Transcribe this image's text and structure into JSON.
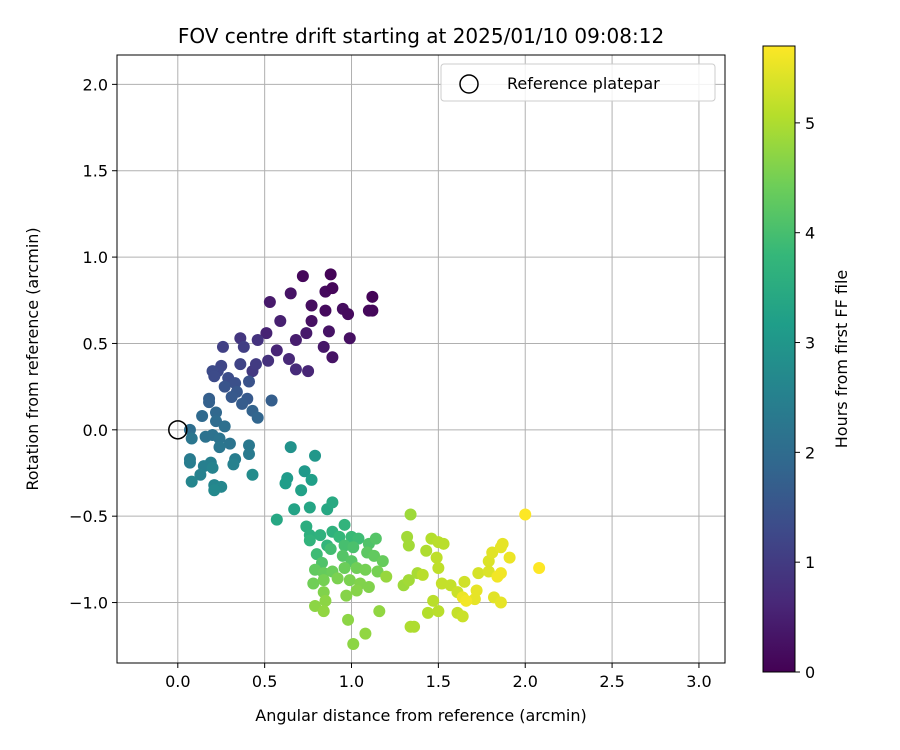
{
  "chart_data": {
    "type": "scatter",
    "title": "FOV centre drift starting at 2025/01/10 09:08:12",
    "xlabel": "Angular distance from reference (arcmin)",
    "ylabel": "Rotation from reference (arcmin)",
    "xlim": [
      -0.35,
      3.15
    ],
    "ylim": [
      -1.35,
      2.17
    ],
    "xticks": [
      "0.0",
      "0.5",
      "1.0",
      "1.5",
      "2.0",
      "2.5",
      "3.0"
    ],
    "yticks": [
      "−1.0",
      "−0.5",
      "0.0",
      "0.5",
      "1.0",
      "1.5",
      "2.0"
    ],
    "grid": true,
    "legend": {
      "position": "top-right",
      "entries": [
        "Reference platepar"
      ]
    },
    "reference_point": {
      "x": 0.0,
      "y": 0.0
    },
    "colorbar": {
      "label": "Hours from first FF file",
      "range": [
        0,
        5.7
      ],
      "ticks": [
        "0",
        "1",
        "2",
        "3",
        "4",
        "5"
      ],
      "colormap": "viridis"
    },
    "colormap_stops": [
      "#440154",
      "#482878",
      "#3e4989",
      "#31688e",
      "#26828e",
      "#1f9e89",
      "#35b779",
      "#6ece58",
      "#b5de2b",
      "#fde725"
    ],
    "points": [
      {
        "x": 0.88,
        "y": 0.9,
        "h": 0.05
      },
      {
        "x": 0.72,
        "y": 0.89,
        "h": 0.1
      },
      {
        "x": 0.85,
        "y": 0.8,
        "h": 0.15
      },
      {
        "x": 0.89,
        "y": 0.82,
        "h": 0.1
      },
      {
        "x": 1.12,
        "y": 0.77,
        "h": 0.05
      },
      {
        "x": 1.12,
        "y": 0.69,
        "h": 0.1
      },
      {
        "x": 1.1,
        "y": 0.69,
        "h": 0.12
      },
      {
        "x": 0.77,
        "y": 0.72,
        "h": 0.2
      },
      {
        "x": 0.85,
        "y": 0.69,
        "h": 0.15
      },
      {
        "x": 0.95,
        "y": 0.7,
        "h": 0.2
      },
      {
        "x": 0.98,
        "y": 0.67,
        "h": 0.15
      },
      {
        "x": 0.77,
        "y": 0.63,
        "h": 0.25
      },
      {
        "x": 0.65,
        "y": 0.79,
        "h": 0.3
      },
      {
        "x": 0.53,
        "y": 0.74,
        "h": 0.4
      },
      {
        "x": 0.87,
        "y": 0.57,
        "h": 0.3
      },
      {
        "x": 0.84,
        "y": 0.48,
        "h": 0.35
      },
      {
        "x": 0.99,
        "y": 0.53,
        "h": 0.25
      },
      {
        "x": 0.89,
        "y": 0.42,
        "h": 0.3
      },
      {
        "x": 0.74,
        "y": 0.56,
        "h": 0.4
      },
      {
        "x": 0.68,
        "y": 0.52,
        "h": 0.45
      },
      {
        "x": 0.59,
        "y": 0.63,
        "h": 0.5
      },
      {
        "x": 0.51,
        "y": 0.56,
        "h": 0.55
      },
      {
        "x": 0.57,
        "y": 0.46,
        "h": 0.6
      },
      {
        "x": 0.64,
        "y": 0.41,
        "h": 0.65
      },
      {
        "x": 0.68,
        "y": 0.35,
        "h": 0.7
      },
      {
        "x": 0.75,
        "y": 0.34,
        "h": 0.6
      },
      {
        "x": 0.52,
        "y": 0.4,
        "h": 0.8
      },
      {
        "x": 0.46,
        "y": 0.52,
        "h": 0.85
      },
      {
        "x": 0.36,
        "y": 0.53,
        "h": 0.9
      },
      {
        "x": 0.43,
        "y": 0.34,
        "h": 0.95
      },
      {
        "x": 0.45,
        "y": 0.38,
        "h": 1.0
      },
      {
        "x": 0.38,
        "y": 0.48,
        "h": 1.05
      },
      {
        "x": 0.26,
        "y": 0.48,
        "h": 1.1
      },
      {
        "x": 0.36,
        "y": 0.38,
        "h": 1.15
      },
      {
        "x": 0.25,
        "y": 0.37,
        "h": 1.2
      },
      {
        "x": 0.23,
        "y": 0.34,
        "h": 1.25
      },
      {
        "x": 0.2,
        "y": 0.34,
        "h": 1.3
      },
      {
        "x": 0.21,
        "y": 0.31,
        "h": 1.3
      },
      {
        "x": 0.29,
        "y": 0.3,
        "h": 1.35
      },
      {
        "x": 0.33,
        "y": 0.27,
        "h": 1.4
      },
      {
        "x": 0.41,
        "y": 0.28,
        "h": 1.45
      },
      {
        "x": 0.27,
        "y": 0.25,
        "h": 1.5
      },
      {
        "x": 0.34,
        "y": 0.22,
        "h": 1.55
      },
      {
        "x": 0.31,
        "y": 0.19,
        "h": 1.6
      },
      {
        "x": 0.4,
        "y": 0.18,
        "h": 1.6
      },
      {
        "x": 0.37,
        "y": 0.15,
        "h": 1.65
      },
      {
        "x": 0.54,
        "y": 0.17,
        "h": 1.7
      },
      {
        "x": 0.18,
        "y": 0.18,
        "h": 1.7
      },
      {
        "x": 0.18,
        "y": 0.16,
        "h": 1.75
      },
      {
        "x": 0.43,
        "y": 0.11,
        "h": 1.8
      },
      {
        "x": 0.46,
        "y": 0.07,
        "h": 1.85
      },
      {
        "x": 0.22,
        "y": 0.1,
        "h": 1.9
      },
      {
        "x": 0.14,
        "y": 0.08,
        "h": 1.95
      },
      {
        "x": 0.22,
        "y": 0.05,
        "h": 2.0
      },
      {
        "x": 0.07,
        "y": 0.0,
        "h": 2.05
      },
      {
        "x": 0.27,
        "y": 0.02,
        "h": 2.1
      },
      {
        "x": 0.16,
        "y": -0.04,
        "h": 2.15
      },
      {
        "x": 0.2,
        "y": -0.03,
        "h": 2.15
      },
      {
        "x": 0.24,
        "y": -0.05,
        "h": 2.2
      },
      {
        "x": 0.3,
        "y": -0.08,
        "h": 2.2
      },
      {
        "x": 0.08,
        "y": -0.05,
        "h": 2.25
      },
      {
        "x": 0.24,
        "y": -0.1,
        "h": 2.25
      },
      {
        "x": 0.41,
        "y": -0.09,
        "h": 2.3
      },
      {
        "x": 0.41,
        "y": -0.14,
        "h": 2.35
      },
      {
        "x": 0.07,
        "y": -0.17,
        "h": 2.35
      },
      {
        "x": 0.07,
        "y": -0.19,
        "h": 2.4
      },
      {
        "x": 0.33,
        "y": -0.17,
        "h": 2.4
      },
      {
        "x": 0.19,
        "y": -0.19,
        "h": 2.45
      },
      {
        "x": 0.15,
        "y": -0.21,
        "h": 2.45
      },
      {
        "x": 0.32,
        "y": -0.2,
        "h": 2.5
      },
      {
        "x": 0.13,
        "y": -0.26,
        "h": 2.5
      },
      {
        "x": 0.2,
        "y": -0.22,
        "h": 2.55
      },
      {
        "x": 0.08,
        "y": -0.3,
        "h": 2.6
      },
      {
        "x": 0.21,
        "y": -0.32,
        "h": 2.6
      },
      {
        "x": 0.25,
        "y": -0.33,
        "h": 2.65
      },
      {
        "x": 0.21,
        "y": -0.35,
        "h": 2.7
      },
      {
        "x": 0.43,
        "y": -0.26,
        "h": 2.75
      },
      {
        "x": 0.65,
        "y": -0.1,
        "h": 2.9
      },
      {
        "x": 0.79,
        "y": -0.15,
        "h": 3.0
      },
      {
        "x": 0.73,
        "y": -0.24,
        "h": 3.05
      },
      {
        "x": 0.63,
        "y": -0.28,
        "h": 3.1
      },
      {
        "x": 0.62,
        "y": -0.31,
        "h": 3.15
      },
      {
        "x": 0.77,
        "y": -0.29,
        "h": 3.2
      },
      {
        "x": 0.71,
        "y": -0.35,
        "h": 3.25
      },
      {
        "x": 0.67,
        "y": -0.46,
        "h": 3.3
      },
      {
        "x": 0.76,
        "y": -0.45,
        "h": 3.35
      },
      {
        "x": 0.57,
        "y": -0.52,
        "h": 3.4
      },
      {
        "x": 0.86,
        "y": -0.46,
        "h": 3.4
      },
      {
        "x": 0.89,
        "y": -0.42,
        "h": 3.45
      },
      {
        "x": 0.74,
        "y": -0.56,
        "h": 3.55
      },
      {
        "x": 0.76,
        "y": -0.61,
        "h": 3.6
      },
      {
        "x": 0.82,
        "y": -0.61,
        "h": 3.65
      },
      {
        "x": 0.89,
        "y": -0.59,
        "h": 3.65
      },
      {
        "x": 0.96,
        "y": -0.55,
        "h": 3.7
      },
      {
        "x": 0.76,
        "y": -0.64,
        "h": 3.7
      },
      {
        "x": 0.86,
        "y": -0.67,
        "h": 3.75
      },
      {
        "x": 0.93,
        "y": -0.62,
        "h": 3.8
      },
      {
        "x": 1.0,
        "y": -0.62,
        "h": 3.85
      },
      {
        "x": 1.04,
        "y": -0.63,
        "h": 3.9
      },
      {
        "x": 0.8,
        "y": -0.72,
        "h": 3.9
      },
      {
        "x": 0.88,
        "y": -0.69,
        "h": 3.95
      },
      {
        "x": 0.96,
        "y": -0.67,
        "h": 4.0
      },
      {
        "x": 1.01,
        "y": -0.68,
        "h": 4.05
      },
      {
        "x": 1.1,
        "y": -0.66,
        "h": 4.1
      },
      {
        "x": 1.14,
        "y": -0.63,
        "h": 4.15
      },
      {
        "x": 0.83,
        "y": -0.77,
        "h": 4.1
      },
      {
        "x": 0.95,
        "y": -0.73,
        "h": 4.15
      },
      {
        "x": 1.0,
        "y": -0.76,
        "h": 4.2
      },
      {
        "x": 1.09,
        "y": -0.71,
        "h": 4.25
      },
      {
        "x": 1.13,
        "y": -0.73,
        "h": 4.3
      },
      {
        "x": 1.18,
        "y": -0.76,
        "h": 4.35
      },
      {
        "x": 0.79,
        "y": -0.81,
        "h": 4.3
      },
      {
        "x": 0.84,
        "y": -0.83,
        "h": 4.35
      },
      {
        "x": 0.89,
        "y": -0.82,
        "h": 4.4
      },
      {
        "x": 0.96,
        "y": -0.8,
        "h": 4.4
      },
      {
        "x": 1.03,
        "y": -0.8,
        "h": 4.45
      },
      {
        "x": 1.08,
        "y": -0.81,
        "h": 4.5
      },
      {
        "x": 1.15,
        "y": -0.82,
        "h": 4.5
      },
      {
        "x": 0.78,
        "y": -0.89,
        "h": 4.45
      },
      {
        "x": 0.84,
        "y": -0.87,
        "h": 4.5
      },
      {
        "x": 0.92,
        "y": -0.86,
        "h": 4.55
      },
      {
        "x": 0.99,
        "y": -0.87,
        "h": 4.55
      },
      {
        "x": 1.05,
        "y": -0.89,
        "h": 4.6
      },
      {
        "x": 1.1,
        "y": -0.91,
        "h": 4.6
      },
      {
        "x": 0.84,
        "y": -0.94,
        "h": 4.6
      },
      {
        "x": 0.97,
        "y": -0.96,
        "h": 4.65
      },
      {
        "x": 1.03,
        "y": -0.93,
        "h": 4.65
      },
      {
        "x": 0.85,
        "y": -0.99,
        "h": 4.7
      },
      {
        "x": 0.79,
        "y": -1.02,
        "h": 4.7
      },
      {
        "x": 0.84,
        "y": -1.05,
        "h": 4.75
      },
      {
        "x": 0.98,
        "y": -1.1,
        "h": 4.7
      },
      {
        "x": 1.16,
        "y": -1.05,
        "h": 4.75
      },
      {
        "x": 1.08,
        "y": -1.18,
        "h": 4.75
      },
      {
        "x": 1.01,
        "y": -1.24,
        "h": 4.7
      },
      {
        "x": 1.2,
        "y": -0.85,
        "h": 4.8
      },
      {
        "x": 1.3,
        "y": -0.9,
        "h": 4.85
      },
      {
        "x": 1.33,
        "y": -0.87,
        "h": 4.9
      },
      {
        "x": 1.38,
        "y": -0.83,
        "h": 4.95
      },
      {
        "x": 1.32,
        "y": -0.62,
        "h": 4.9
      },
      {
        "x": 1.34,
        "y": -0.49,
        "h": 4.85
      },
      {
        "x": 1.33,
        "y": -0.67,
        "h": 4.9
      },
      {
        "x": 1.43,
        "y": -0.7,
        "h": 5.0
      },
      {
        "x": 1.46,
        "y": -0.63,
        "h": 5.05
      },
      {
        "x": 1.5,
        "y": -0.65,
        "h": 5.1
      },
      {
        "x": 1.53,
        "y": -0.66,
        "h": 5.1
      },
      {
        "x": 1.49,
        "y": -0.74,
        "h": 5.15
      },
      {
        "x": 1.41,
        "y": -0.84,
        "h": 5.1
      },
      {
        "x": 1.5,
        "y": -0.8,
        "h": 5.15
      },
      {
        "x": 1.52,
        "y": -0.89,
        "h": 5.2
      },
      {
        "x": 1.57,
        "y": -0.9,
        "h": 5.2
      },
      {
        "x": 1.61,
        "y": -0.94,
        "h": 5.25
      },
      {
        "x": 1.65,
        "y": -0.88,
        "h": 5.3
      },
      {
        "x": 1.73,
        "y": -0.83,
        "h": 5.35
      },
      {
        "x": 1.79,
        "y": -0.82,
        "h": 5.4
      },
      {
        "x": 1.79,
        "y": -0.76,
        "h": 5.4
      },
      {
        "x": 1.81,
        "y": -0.71,
        "h": 5.45
      },
      {
        "x": 1.86,
        "y": -0.68,
        "h": 5.5
      },
      {
        "x": 1.87,
        "y": -0.66,
        "h": 5.5
      },
      {
        "x": 1.91,
        "y": -0.74,
        "h": 5.55
      },
      {
        "x": 1.86,
        "y": -0.83,
        "h": 5.6
      },
      {
        "x": 1.84,
        "y": -0.85,
        "h": 5.6
      },
      {
        "x": 1.64,
        "y": -0.97,
        "h": 5.55
      },
      {
        "x": 1.71,
        "y": -0.98,
        "h": 5.5
      },
      {
        "x": 1.82,
        "y": -0.97,
        "h": 5.45
      },
      {
        "x": 1.86,
        "y": -1.0,
        "h": 5.5
      },
      {
        "x": 1.47,
        "y": -0.99,
        "h": 5.1
      },
      {
        "x": 1.44,
        "y": -1.06,
        "h": 5.05
      },
      {
        "x": 1.5,
        "y": -1.05,
        "h": 5.1
      },
      {
        "x": 1.61,
        "y": -1.06,
        "h": 5.2
      },
      {
        "x": 1.64,
        "y": -1.08,
        "h": 5.25
      },
      {
        "x": 1.34,
        "y": -1.14,
        "h": 5.0
      },
      {
        "x": 1.36,
        "y": -1.14,
        "h": 5.0
      },
      {
        "x": 2.0,
        "y": -0.49,
        "h": 5.7
      },
      {
        "x": 2.08,
        "y": -0.8,
        "h": 5.7
      },
      {
        "x": 1.66,
        "y": -0.99,
        "h": 5.6
      },
      {
        "x": 1.72,
        "y": -0.93,
        "h": 5.5
      }
    ]
  }
}
